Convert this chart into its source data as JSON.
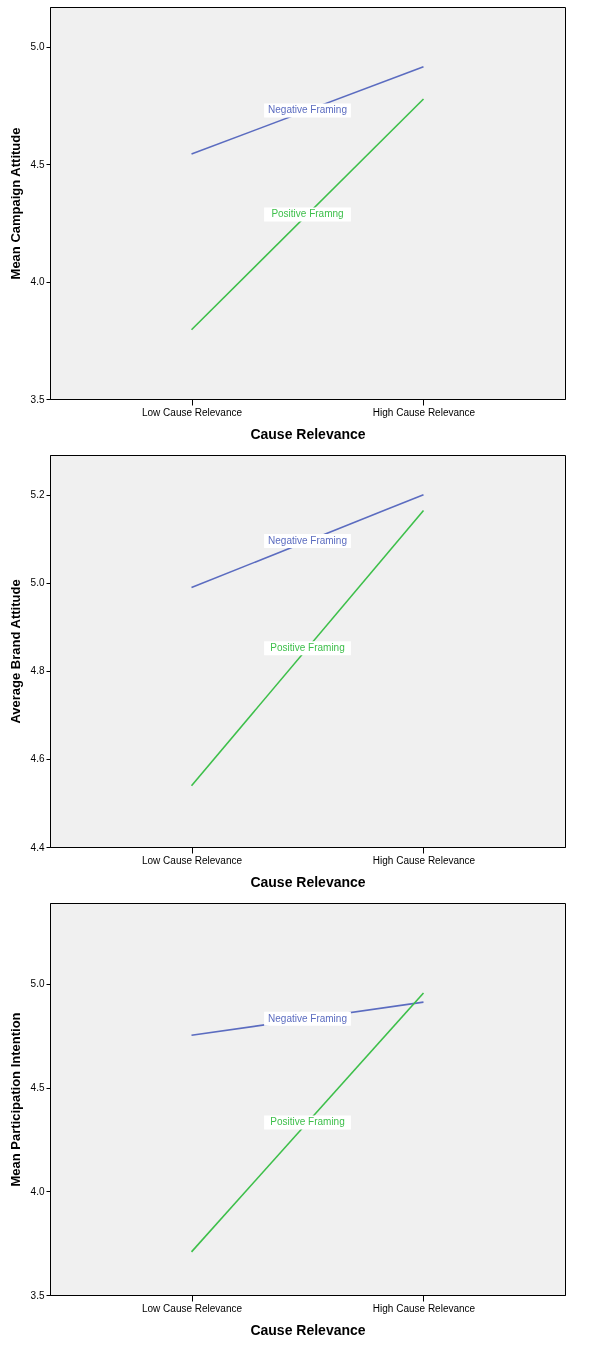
{
  "chart_data": [
    {
      "type": "line",
      "categories": [
        "Low Cause Relevance",
        "High Cause Relevance"
      ],
      "xlabel": "Cause Relevance",
      "ylabel": "Mean Campaign Attitude",
      "ylim": [
        3.5,
        5.17
      ],
      "yticks": [
        {
          "value": 3.5,
          "label": "3.5"
        },
        {
          "value": 4.0,
          "label": "4.0"
        },
        {
          "value": 4.5,
          "label": "4.5"
        },
        {
          "value": 5.0,
          "label": "5.0"
        }
      ],
      "grid": false,
      "legend": false,
      "series": [
        {
          "name": "Negative Framing",
          "color": "#5b6cc0",
          "values": [
            4.544,
            4.915
          ]
        },
        {
          "name": "Positive Framng",
          "color": "#3dbf4a",
          "values": [
            3.795,
            4.778
          ]
        }
      ]
    },
    {
      "type": "line",
      "categories": [
        "Low Cause Relevance",
        "High Cause Relevance"
      ],
      "xlabel": "Cause Relevance",
      "ylabel": "Average Brand Attitude",
      "ylim": [
        4.4,
        5.29
      ],
      "yticks": [
        {
          "value": 4.4,
          "label": "4.4"
        },
        {
          "value": 4.6,
          "label": "4.6"
        },
        {
          "value": 4.8,
          "label": "4.8"
        },
        {
          "value": 5.0,
          "label": "5.0"
        },
        {
          "value": 5.2,
          "label": "5.2"
        }
      ],
      "grid": false,
      "legend": false,
      "series": [
        {
          "name": "Negative Framing",
          "color": "#5b6cc0",
          "values": [
            4.989,
            5.2
          ]
        },
        {
          "name": "Positive Framing",
          "color": "#3dbf4a",
          "values": [
            4.539,
            5.164
          ]
        }
      ]
    },
    {
      "type": "line",
      "categories": [
        "Low Cause Relevance",
        "High Cause Relevance"
      ],
      "xlabel": "Cause Relevance",
      "ylabel": "Mean Participation Intention",
      "ylim": [
        3.5,
        5.39
      ],
      "yticks": [
        {
          "value": 3.5,
          "label": "3.5"
        },
        {
          "value": 4.0,
          "label": "4.0"
        },
        {
          "value": 4.5,
          "label": "4.5"
        },
        {
          "value": 5.0,
          "label": "5.0"
        }
      ],
      "grid": false,
      "legend": false,
      "series": [
        {
          "name": "Negative Framing",
          "color": "#5b6cc0",
          "values": [
            4.752,
            4.912
          ]
        },
        {
          "name": "Positive Framing",
          "color": "#3dbf4a",
          "values": [
            3.708,
            4.956
          ]
        }
      ]
    }
  ]
}
